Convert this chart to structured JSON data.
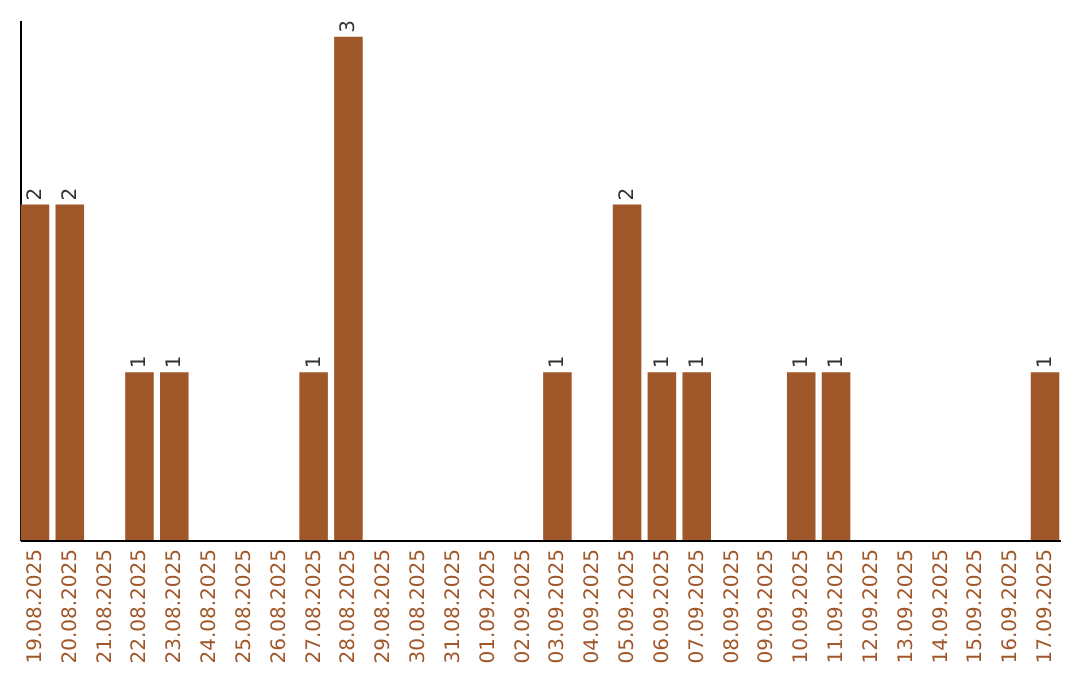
{
  "chart_data": {
    "type": "bar",
    "categories": [
      "19.08.2025",
      "20.08.2025",
      "21.08.2025",
      "22.08.2025",
      "23.08.2025",
      "24.08.2025",
      "25.08.2025",
      "26.08.2025",
      "27.08.2025",
      "28.08.2025",
      "29.08.2025",
      "30.08.2025",
      "31.08.2025",
      "01.09.2025",
      "02.09.2025",
      "03.09.2025",
      "04.09.2025",
      "05.09.2025",
      "06.09.2025",
      "07.09.2025",
      "08.09.2025",
      "09.09.2025",
      "10.09.2025",
      "11.09.2025",
      "12.09.2025",
      "13.09.2025",
      "14.09.2025",
      "15.09.2025",
      "16.09.2025",
      "17.09.2025"
    ],
    "values": [
      2,
      2,
      0,
      1,
      1,
      0,
      0,
      0,
      1,
      3,
      0,
      0,
      0,
      0,
      0,
      1,
      0,
      2,
      1,
      1,
      0,
      0,
      1,
      1,
      0,
      0,
      0,
      0,
      0,
      1
    ],
    "value_labels": [
      "2",
      "2",
      null,
      "1",
      "1",
      null,
      null,
      null,
      "1",
      "3",
      null,
      null,
      null,
      null,
      null,
      "1",
      null,
      "2",
      "1",
      "1",
      null,
      null,
      "1",
      "1",
      null,
      null,
      null,
      null,
      null,
      "1"
    ],
    "color": "#a0582a",
    "ylim": [
      0,
      3.1
    ],
    "tick_labels": "x",
    "grid": false
  }
}
